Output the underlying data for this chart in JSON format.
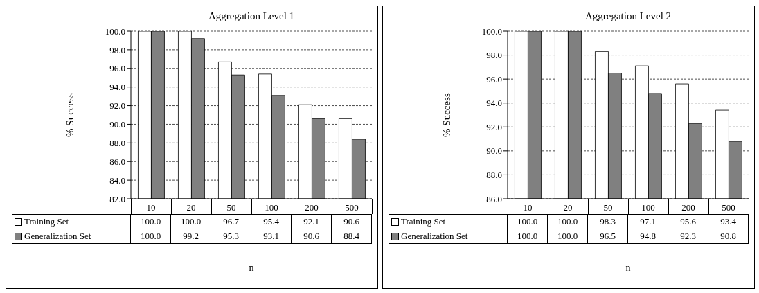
{
  "chart_data": [
    {
      "type": "bar",
      "title": "Aggregation Level 1",
      "xlabel": "n",
      "ylabel": "% Success",
      "categories": [
        "10",
        "20",
        "50",
        "100",
        "200",
        "500"
      ],
      "series": [
        {
          "name": "Training Set",
          "color": "#ffffff",
          "values": [
            100.0,
            100.0,
            96.7,
            95.4,
            92.1,
            90.6
          ],
          "value_labels": [
            "100.0",
            "100.0",
            "96.7",
            "95.4",
            "92.1",
            "90.6"
          ]
        },
        {
          "name": "Generalization Set",
          "color": "#808080",
          "values": [
            100.0,
            99.2,
            95.3,
            93.1,
            90.6,
            88.4
          ],
          "value_labels": [
            "100.0",
            "99.2",
            "95.3",
            "93.1",
            "90.6",
            "88.4"
          ]
        }
      ],
      "ylim": [
        82,
        100
      ],
      "yticks": [
        {
          "value": 82,
          "label": "82.0"
        },
        {
          "value": 84,
          "label": "84.0"
        },
        {
          "value": 86,
          "label": "86.0"
        },
        {
          "value": 88,
          "label": "88.0"
        },
        {
          "value": 90,
          "label": "90.0"
        },
        {
          "value": 92,
          "label": "92.0"
        },
        {
          "value": 94,
          "label": "94.0"
        },
        {
          "value": 96,
          "label": "96.0"
        },
        {
          "value": 98,
          "label": "98.0"
        },
        {
          "value": 100,
          "label": "100.0"
        }
      ],
      "grid": "y",
      "legend": "bottom"
    },
    {
      "type": "bar",
      "title": "Aggregation Level 2",
      "xlabel": "n",
      "ylabel": "% Success",
      "categories": [
        "10",
        "20",
        "50",
        "100",
        "200",
        "500"
      ],
      "series": [
        {
          "name": "Training Set",
          "color": "#ffffff",
          "values": [
            100.0,
            100.0,
            98.3,
            97.1,
            95.6,
            93.4
          ],
          "value_labels": [
            "100.0",
            "100.0",
            "98.3",
            "97.1",
            "95.6",
            "93.4"
          ]
        },
        {
          "name": "Generalization Set",
          "color": "#808080",
          "values": [
            100.0,
            100.0,
            96.5,
            94.8,
            92.3,
            90.8
          ],
          "value_labels": [
            "100.0",
            "100.0",
            "96.5",
            "94.8",
            "92.3",
            "90.8"
          ]
        }
      ],
      "ylim": [
        86,
        100
      ],
      "yticks": [
        {
          "value": 86,
          "label": "86.0"
        },
        {
          "value": 88,
          "label": "88.0"
        },
        {
          "value": 90,
          "label": "90.0"
        },
        {
          "value": 92,
          "label": "92.0"
        },
        {
          "value": 94,
          "label": "94.0"
        },
        {
          "value": 96,
          "label": "96.0"
        },
        {
          "value": 98,
          "label": "98.0"
        },
        {
          "value": 100,
          "label": "100.0"
        }
      ],
      "grid": "y",
      "legend": "bottom"
    }
  ]
}
